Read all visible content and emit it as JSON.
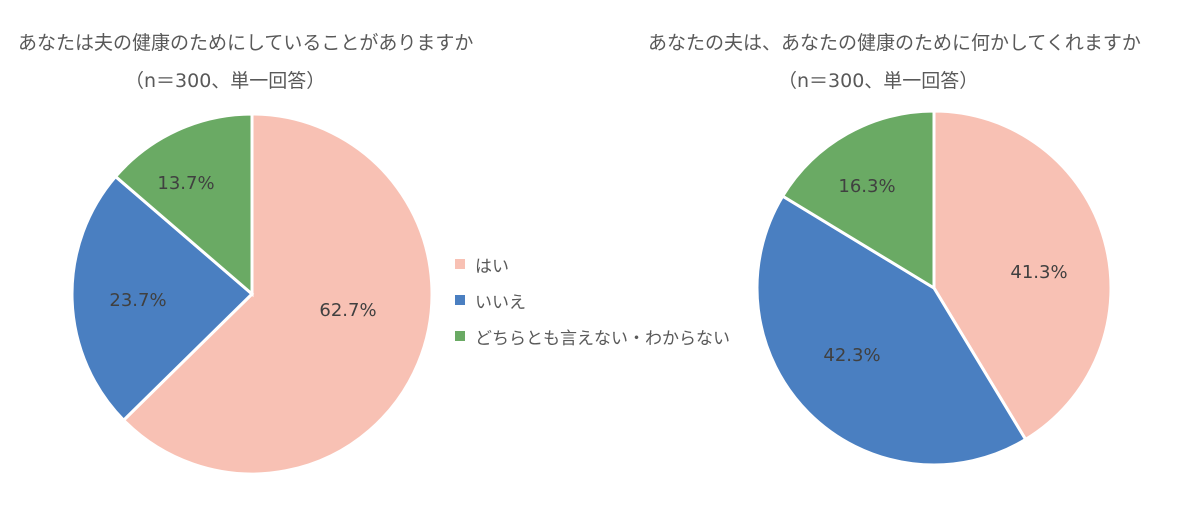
{
  "colors": {
    "yes": "#F8C1B4",
    "no": "#4A7FC1",
    "neither": "#6AAA64",
    "text": "#595959",
    "label_text": "#404040"
  },
  "legend": {
    "items": [
      {
        "label": "はい",
        "color": "#F8C1B4"
      },
      {
        "label": "いいえ",
        "color": "#4A7FC1"
      },
      {
        "label": "どちらとも言えない・わからない",
        "color": "#6AAA64"
      }
    ]
  },
  "charts": {
    "left": {
      "title": "あなたは夫の健康のためにしていることがありますか",
      "subtitle": "（n＝300、単一回答）",
      "labels": [
        "62.7%",
        "23.7%",
        "13.7%"
      ]
    },
    "right": {
      "title": "あなたの夫は、あなたの健康のために何かしてくれますか",
      "subtitle": "（n＝300、単一回答）",
      "labels": [
        "41.3%",
        "42.3%",
        "16.3%"
      ]
    }
  },
  "chart_data": [
    {
      "type": "pie",
      "title": "あなたは夫の健康のためにしていることがありますか",
      "subtitle": "（n＝300、単一回答）",
      "categories": [
        "はい",
        "いいえ",
        "どちらとも言えない・わからない"
      ],
      "values": [
        62.7,
        23.7,
        13.7
      ],
      "unit": "%",
      "start_angle": "12 o'clock, clockwise",
      "legend_position": "between charts (right of left pie)"
    },
    {
      "type": "pie",
      "title": "あなたの夫は、あなたの健康のために何かしてくれますか",
      "subtitle": "（n＝300、単一回答）",
      "categories": [
        "はい",
        "いいえ",
        "どちらとも言えない・わからない"
      ],
      "values": [
        41.3,
        42.3,
        16.3
      ],
      "unit": "%",
      "start_angle": "12 o'clock, clockwise"
    }
  ]
}
